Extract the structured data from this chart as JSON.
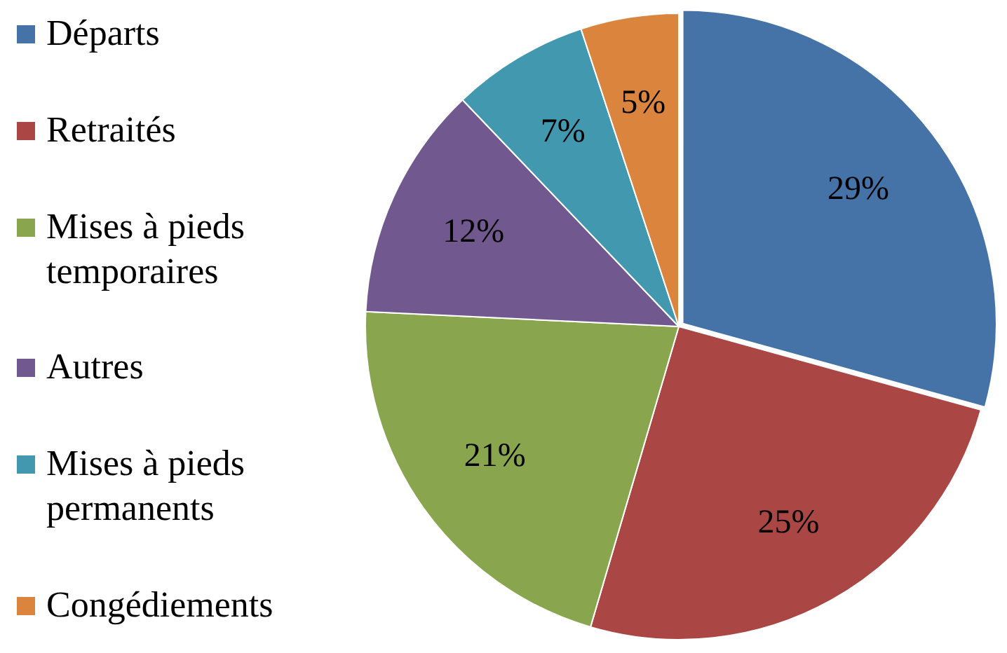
{
  "chart_data": {
    "type": "pie",
    "categories": [
      "Départs",
      "Retraités",
      "Mises à pieds temporaires",
      "Autres",
      "Mises à pieds permanents",
      "Congédiements"
    ],
    "values": [
      29,
      25,
      21,
      12,
      7,
      5
    ],
    "colors": [
      "#4572a7",
      "#aa4643",
      "#89a54e",
      "#71588f",
      "#4198af",
      "#db843d"
    ],
    "value_labels": [
      "29%",
      "25%",
      "21%",
      "12%",
      "7%",
      "5%"
    ],
    "legend": "left"
  }
}
